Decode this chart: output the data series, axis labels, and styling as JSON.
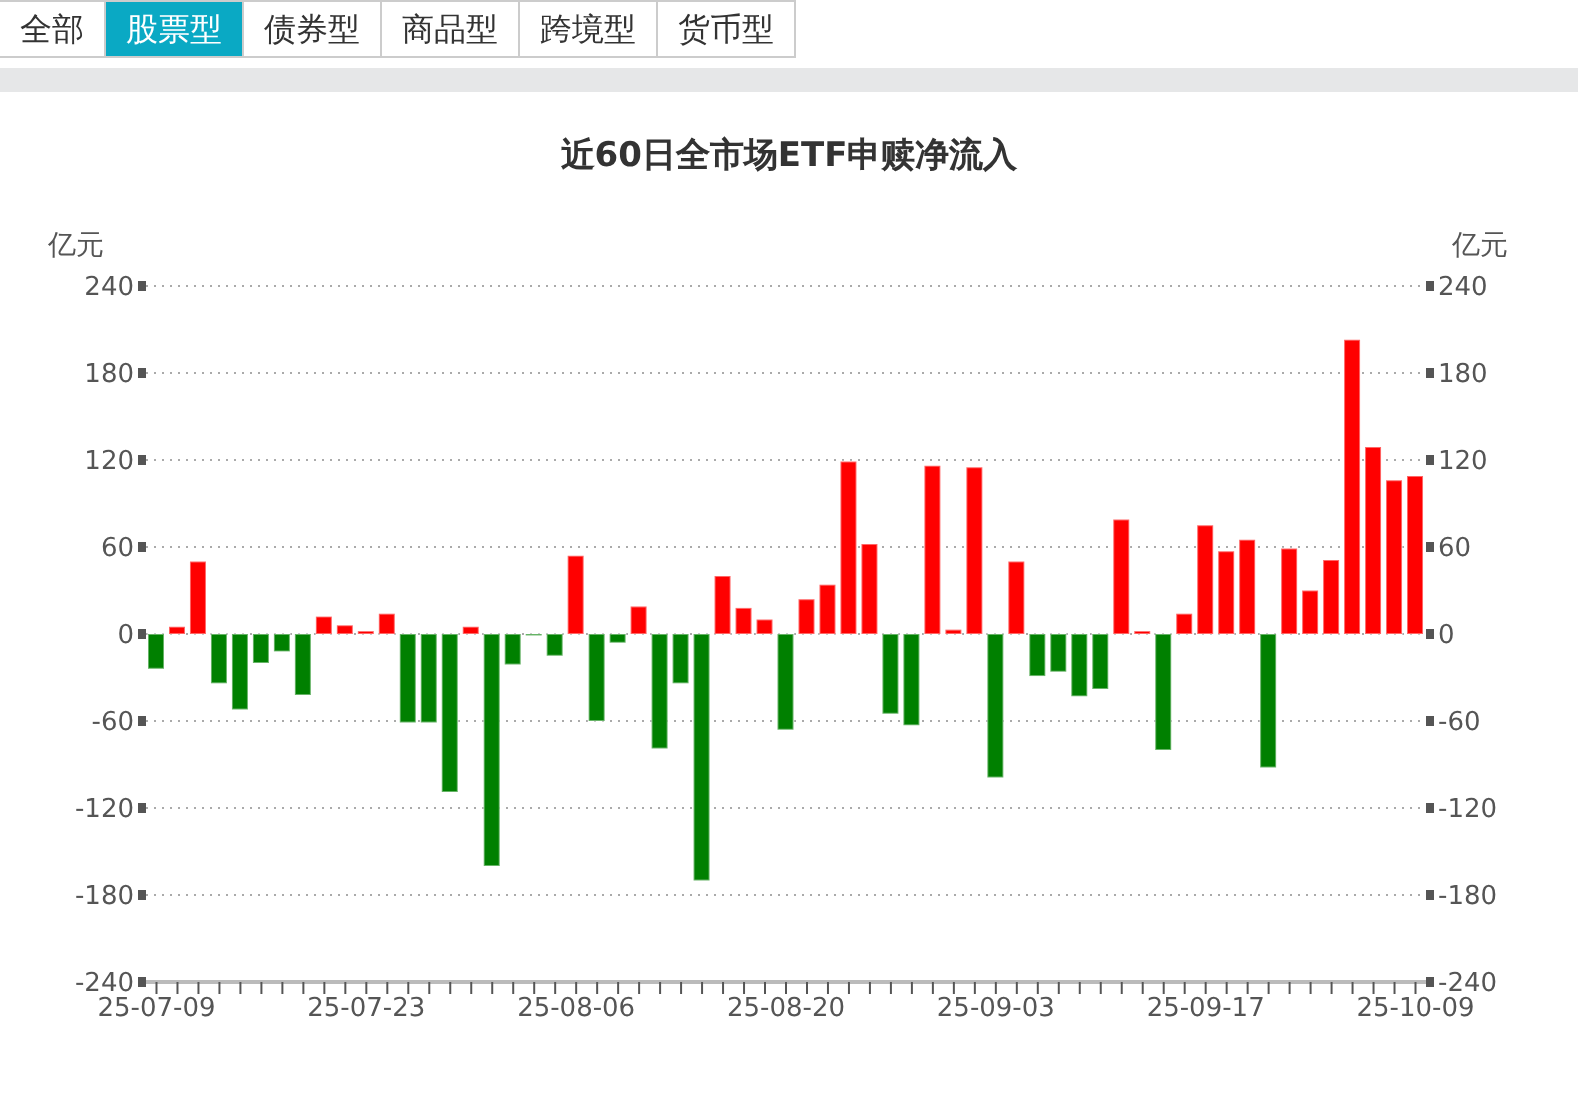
{
  "chart_data": {
    "type": "bar",
    "title": "近60日全市场ETF申赎净流入",
    "ylabel": "亿元",
    "y2label": "亿元",
    "annotations": [
      "全部",
      "股票型",
      "债券型",
      "商品型",
      "跨境型",
      "货币型"
    ],
    "categories": [
      "25-07-09",
      null,
      null,
      null,
      null,
      null,
      null,
      null,
      null,
      null,
      "25-07-23",
      null,
      null,
      null,
      null,
      null,
      null,
      null,
      null,
      null,
      "25-08-06",
      null,
      null,
      null,
      null,
      null,
      null,
      null,
      null,
      null,
      "25-08-20",
      null,
      null,
      null,
      null,
      null,
      null,
      null,
      null,
      null,
      "25-09-03",
      null,
      null,
      null,
      null,
      null,
      null,
      null,
      null,
      null,
      "25-09-17",
      null,
      null,
      null,
      null,
      null,
      null,
      null,
      null,
      null,
      "25-10-09"
    ],
    "values": [
      -24,
      5,
      50,
      -34,
      -52,
      -20,
      -12,
      -42,
      12,
      6,
      2,
      14,
      -61,
      -61,
      -109,
      5,
      -160,
      -21,
      -1,
      -15,
      54,
      -60,
      -6,
      19,
      -79,
      -34,
      -170,
      40,
      18,
      10,
      -66,
      24,
      34,
      119,
      62,
      -55,
      -63,
      116,
      3,
      115,
      -99,
      50,
      -29,
      -26,
      -43,
      -38,
      79,
      2,
      -80,
      14,
      75,
      57,
      65,
      -92,
      59,
      30,
      51,
      203,
      129,
      106,
      109
    ],
    "colors": [
      "#008000",
      "#ff0000",
      "#ff0000",
      "#008000",
      "#008000",
      "#008000",
      "#008000",
      "#008000",
      "#ff0000",
      "#ff0000",
      "#ff0000",
      "#ff0000",
      "#008000",
      "#008000",
      "#008000",
      "#ff0000",
      "#008000",
      "#008000",
      "#008000",
      "#008000",
      "#ff0000",
      "#008000",
      "#008000",
      "#ff0000",
      "#008000",
      "#008000",
      "#008000",
      "#ff0000",
      "#ff0000",
      "#ff0000",
      "#008000",
      "#ff0000",
      "#ff0000",
      "#ff0000",
      "#ff0000",
      "#008000",
      "#008000",
      "#ff0000",
      "#ff0000",
      "#ff0000",
      "#008000",
      "#ff0000",
      "#008000",
      "#008000",
      "#008000",
      "#008000",
      "#ff0000",
      "#ff0000",
      "#008000",
      "#ff0000",
      "#ff0000",
      "#ff0000",
      "#ff0000",
      "#008000",
      "#ff0000",
      "#ff0000",
      "#ff0000",
      "#ff0000",
      "#ff0000",
      "#ff0000",
      "#ff0000"
    ],
    "ylim": [
      -240,
      240
    ],
    "yticks": [
      -240,
      -180,
      -120,
      -60,
      0,
      60,
      120,
      180,
      240
    ],
    "y2lim": [
      -240,
      240
    ],
    "y2ticks": [
      -240,
      -180,
      -120,
      -60,
      0,
      60,
      120,
      180,
      240
    ],
    "grid": "y"
  }
}
